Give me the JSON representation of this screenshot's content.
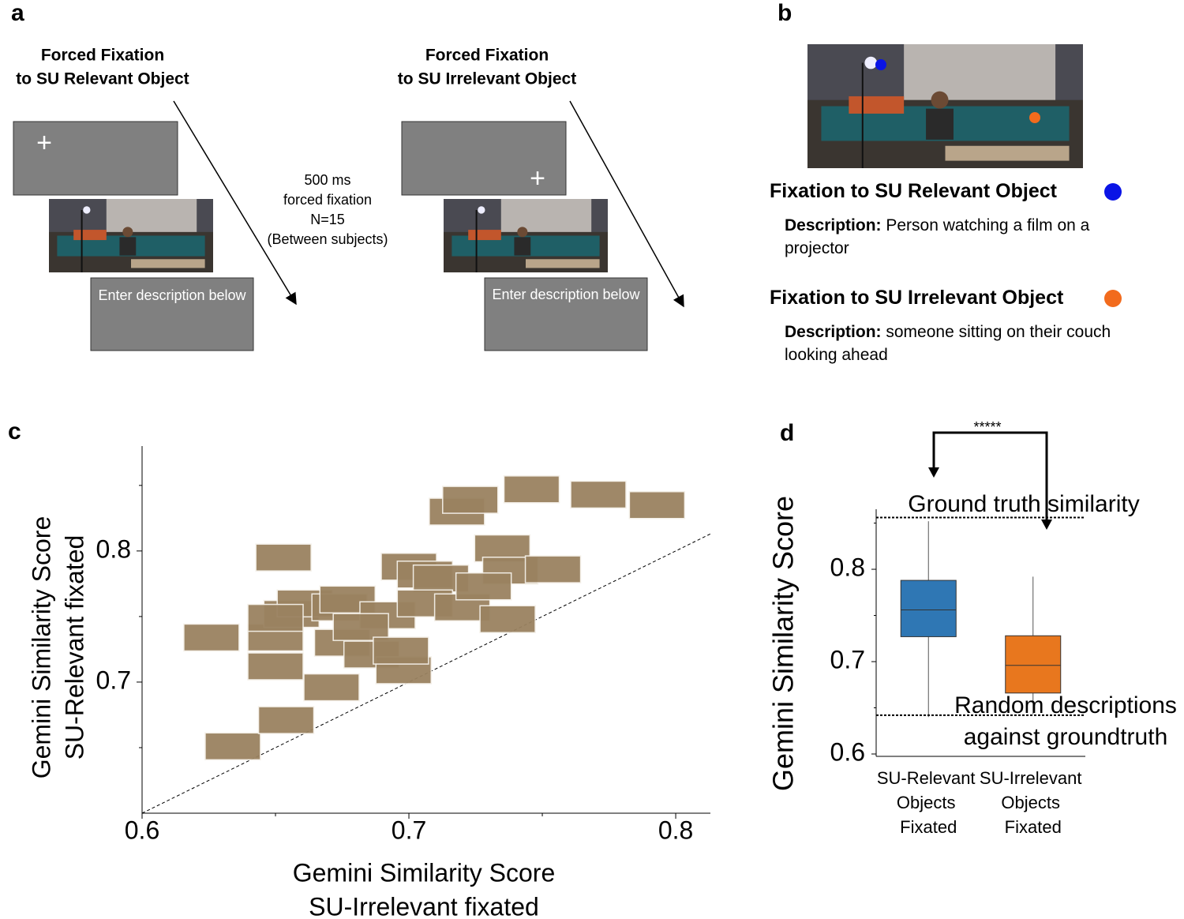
{
  "panel_labels": [
    "a",
    "b",
    "c",
    "d"
  ],
  "panel_a": {
    "left_title": [
      "Forced Fixation",
      "to SU Relevant Object"
    ],
    "right_title": [
      "Forced Fixation",
      "to SU Irrelevant Object"
    ],
    "fixation_cross": "+",
    "prompt": "Enter description below",
    "condition": [
      "500 ms",
      "forced fixation",
      "N=15",
      "(Between subjects)"
    ]
  },
  "panel_b": {
    "items": [
      {
        "heading": "Fixation to SU Relevant Object",
        "color": "#0a14e6",
        "label": "Description:",
        "text": "Person watching a film on a projector"
      },
      {
        "heading": "Fixation to SU Irrelevant Object",
        "color": "#f26b1d",
        "label": "Description:",
        "text": "someone sitting on their couch looking ahead"
      }
    ]
  },
  "chart_data": [
    {
      "type": "scatter",
      "xlabel": [
        "Gemini Similarity Score",
        "SU-Irrelevant fixated"
      ],
      "ylabel": [
        "Gemini Similarity Score",
        "SU-Relevant fixated"
      ],
      "x": [
        0.626,
        0.634,
        0.654,
        0.653,
        0.65,
        0.65,
        0.656,
        0.661,
        0.674,
        0.675,
        0.671,
        0.686,
        0.677,
        0.692,
        0.698,
        0.7,
        0.706,
        0.712,
        0.718,
        0.723,
        0.746,
        0.771,
        0.793,
        0.735,
        0.738,
        0.754,
        0.706,
        0.72,
        0.737,
        0.728,
        0.65,
        0.682,
        0.697
      ],
      "values": [
        0.734,
        0.651,
        0.671,
        0.795,
        0.712,
        0.734,
        0.752,
        0.76,
        0.757,
        0.73,
        0.696,
        0.721,
        0.763,
        0.751,
        0.709,
        0.788,
        0.782,
        0.779,
        0.83,
        0.839,
        0.847,
        0.843,
        0.835,
        0.802,
        0.785,
        0.786,
        0.76,
        0.757,
        0.748,
        0.773,
        0.749,
        0.742,
        0.724
      ],
      "color": "#9a8260",
      "xlim": [
        0.6,
        0.813
      ],
      "ylim": [
        0.6,
        0.88
      ],
      "xticks": [
        0.6,
        0.7,
        0.8
      ],
      "yticks": [
        0.7,
        0.8
      ],
      "minor_xticks": [
        0.65,
        0.75
      ],
      "minor_yticks": [
        0.65,
        0.75,
        0.85
      ],
      "identity_line": true
    },
    {
      "type": "box",
      "ylabel": "Gemini Similarity Score",
      "categories": [
        "SU-Relevant Objects Fixated",
        "SU-Irrelevant Objects Fixated"
      ],
      "boxes": [
        {
          "color": "#2f77b4",
          "whisker_low": 0.64,
          "q1": 0.727,
          "median": 0.756,
          "q3": 0.788,
          "whisker_high": 0.852
        },
        {
          "color": "#e8771e",
          "whisker_low": 0.643,
          "q1": 0.666,
          "median": 0.696,
          "q3": 0.728,
          "whisker_high": 0.792
        }
      ],
      "ylim": [
        0.6,
        0.865
      ],
      "yticks": [
        0.6,
        0.7,
        0.8
      ],
      "minor_yticks": [
        0.65,
        0.75,
        0.85
      ],
      "reference_lines": [
        {
          "value": 0.856,
          "label": [
            "Ground truth similarity"
          ]
        },
        {
          "value": 0.642,
          "label": [
            "Random descriptions",
            "against groundtruth"
          ]
        }
      ],
      "significance": "*****"
    }
  ]
}
